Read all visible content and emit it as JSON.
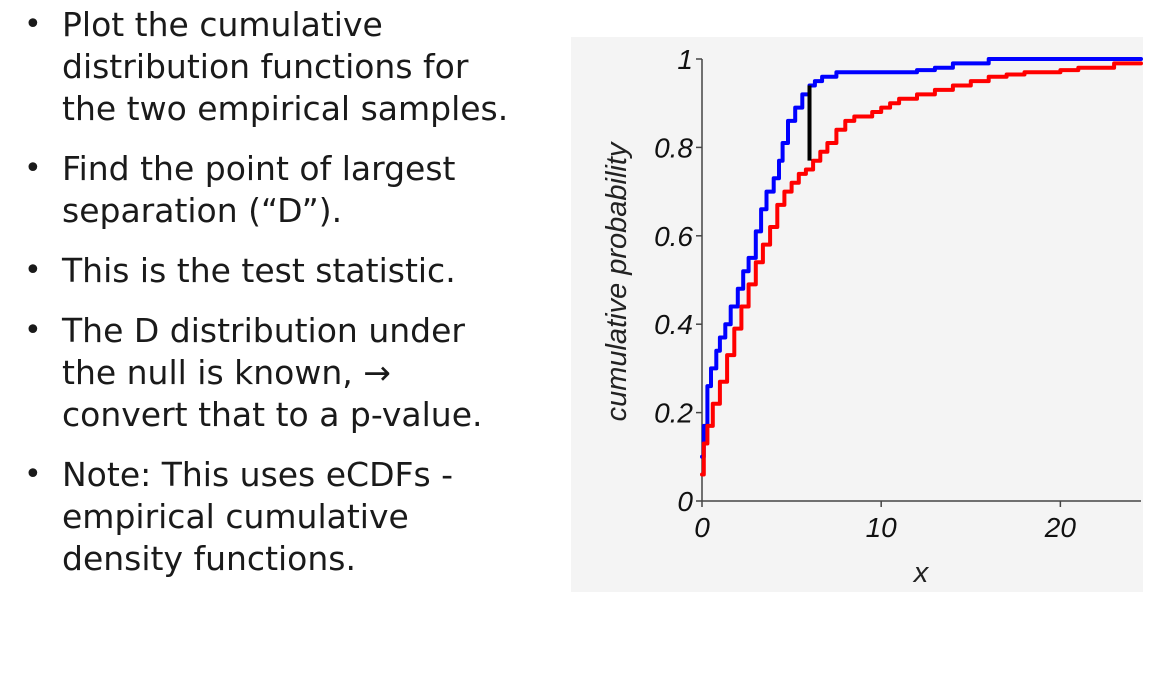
{
  "bullets": [
    {
      "lines": [
        "Plot the cumulative",
        "distribution functions for",
        "the two empirical samples."
      ]
    },
    {
      "lines": [
        "Find the point of largest",
        "separation (“D”)."
      ]
    },
    {
      "lines": [
        "This is the test statistic."
      ]
    },
    {
      "lines": [
        "The D distribution under",
        "the null is known, →",
        "convert that to a p-value."
      ]
    },
    {
      "lines": [
        "Note: This uses eCDFs -",
        "empirical cumulative",
        "density functions."
      ]
    }
  ],
  "bullet_glyph": "•",
  "chart_data": {
    "type": "line",
    "title": "",
    "xlabel": "x",
    "ylabel": "cumulative probability",
    "xlim": [
      0,
      24.5
    ],
    "ylim": [
      0,
      1
    ],
    "xticks": [
      "0",
      "10",
      "20"
    ],
    "yticks": [
      "0",
      "0.2",
      "0.4",
      "0.6",
      "0.8",
      "1"
    ],
    "grid": false,
    "series": [
      {
        "color": "#0000ff",
        "x": [
          0,
          0.1,
          0.3,
          0.5,
          0.8,
          1.0,
          1.3,
          1.6,
          2.0,
          2.3,
          2.6,
          3.0,
          3.3,
          3.6,
          4.0,
          4.3,
          4.5,
          4.8,
          5.2,
          5.6,
          6.0,
          6.3,
          6.7,
          7.0,
          7.5,
          8.0,
          9.0,
          10.0,
          11.0,
          12.0,
          13.0,
          14.0,
          15.0,
          16.0,
          18.0,
          20.0,
          22.0,
          24.5
        ],
        "y": [
          0.1,
          0.17,
          0.26,
          0.3,
          0.34,
          0.37,
          0.4,
          0.44,
          0.48,
          0.52,
          0.55,
          0.61,
          0.66,
          0.7,
          0.73,
          0.77,
          0.81,
          0.86,
          0.89,
          0.92,
          0.94,
          0.95,
          0.96,
          0.96,
          0.97,
          0.97,
          0.97,
          0.97,
          0.97,
          0.975,
          0.98,
          0.99,
          0.99,
          1.0,
          1.0,
          1.0,
          1.0,
          1.0
        ]
      },
      {
        "color": "#ff0000",
        "x": [
          0,
          0.1,
          0.3,
          0.6,
          1.0,
          1.4,
          1.8,
          2.2,
          2.6,
          3.0,
          3.4,
          3.8,
          4.2,
          4.6,
          5.0,
          5.4,
          5.8,
          6.2,
          6.6,
          7.0,
          7.5,
          8.0,
          8.5,
          9.0,
          9.5,
          10.0,
          10.5,
          11.0,
          12.0,
          13.0,
          14.0,
          15.0,
          16.0,
          17.0,
          18.0,
          19.0,
          20.0,
          21.0,
          22.0,
          23.0,
          24.5
        ],
        "y": [
          0.06,
          0.13,
          0.17,
          0.22,
          0.27,
          0.33,
          0.39,
          0.44,
          0.49,
          0.54,
          0.58,
          0.62,
          0.67,
          0.7,
          0.72,
          0.74,
          0.75,
          0.77,
          0.79,
          0.81,
          0.84,
          0.86,
          0.87,
          0.87,
          0.88,
          0.89,
          0.9,
          0.91,
          0.92,
          0.93,
          0.94,
          0.95,
          0.96,
          0.965,
          0.97,
          0.97,
          0.975,
          0.98,
          0.98,
          0.99,
          0.99
        ]
      }
    ],
    "annotations": [
      {
        "type": "segment",
        "color": "#000000",
        "x": 6.0,
        "y1": 0.77,
        "y2": 0.94
      }
    ]
  }
}
